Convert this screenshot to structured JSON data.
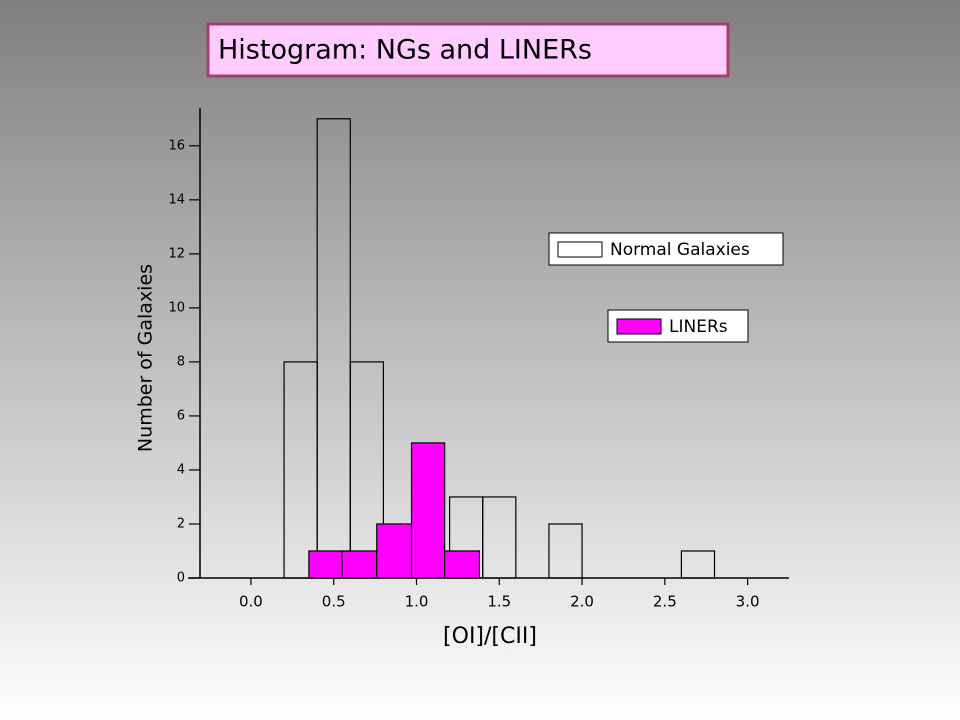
{
  "chart_data": {
    "type": "histogram",
    "title": "Histogram: NGs and LINERs",
    "x_label": "[OI]/[CII]",
    "y_label": "Number of Galaxies",
    "series": [
      {
        "name": "Normal Galaxies",
        "color": "none",
        "bins": [
          0.2,
          0.4,
          0.6,
          0.8,
          1.0,
          1.2,
          1.4,
          1.6,
          1.8,
          2.0,
          2.2,
          2.4,
          2.6,
          2.8
        ],
        "values": [
          8,
          17,
          8,
          0,
          0,
          3,
          3,
          0,
          2,
          0,
          0,
          0,
          1
        ]
      },
      {
        "name": "LINERs",
        "color": "#ff00ff",
        "bins": [
          0.35,
          0.55,
          0.76,
          0.97,
          1.17,
          1.38
        ],
        "values": [
          1,
          1,
          2,
          5,
          1
        ]
      }
    ],
    "xlim": [
      -0.35,
      3.25
    ],
    "xticks": [
      {
        "value": 0,
        "label": "0.0"
      },
      0.5,
      {
        "value": 1,
        "label": "1.0"
      },
      1.5,
      {
        "value": 2,
        "label": "2.0"
      },
      2.5,
      {
        "value": 3,
        "label": "3.0"
      }
    ],
    "ylim": [
      0,
      17.4
    ],
    "yticks": [
      0,
      2,
      4,
      6,
      8,
      10,
      12,
      14,
      16
    ]
  }
}
